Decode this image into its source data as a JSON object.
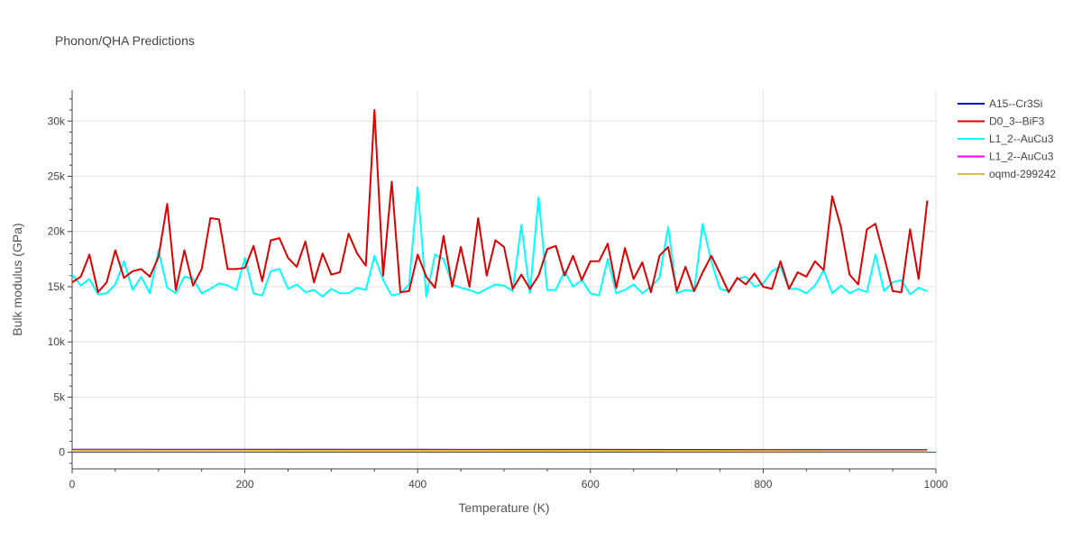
{
  "chart_data": {
    "type": "line",
    "title": "Phonon/QHA Predictions",
    "xlabel": "Temperature (K)",
    "ylabel": "Bulk modulus (GPa)",
    "xlim": [
      0,
      1000
    ],
    "ylim": [
      -1500,
      32800
    ],
    "xticks": [
      0,
      200,
      400,
      600,
      800,
      1000
    ],
    "xtick_labels": [
      "0",
      "200",
      "400",
      "600",
      "800",
      "1000"
    ],
    "yticks": [
      0,
      5000,
      10000,
      15000,
      20000,
      25000,
      30000
    ],
    "ytick_labels": [
      "0",
      "5k",
      "10k",
      "15k",
      "20k",
      "25k",
      "30k"
    ],
    "grid": true,
    "legend_position": "top-right",
    "series": [
      {
        "name": "A15--Cr3Si",
        "color": "#0000dd",
        "x": [
          0,
          200,
          400,
          600,
          800,
          990
        ],
        "y": [
          240,
          238,
          232,
          222,
          208,
          190
        ]
      },
      {
        "name": "D0_3--BiF3",
        "color": "#dd0000",
        "x": [
          0,
          10,
          20,
          30,
          40,
          50,
          60,
          70,
          80,
          90,
          100,
          110,
          120,
          130,
          140,
          150,
          160,
          170,
          180,
          190,
          200,
          210,
          220,
          230,
          240,
          250,
          260,
          270,
          280,
          290,
          300,
          310,
          320,
          330,
          340,
          350,
          360,
          370,
          380,
          390,
          400,
          410,
          420,
          430,
          440,
          450,
          460,
          470,
          480,
          490,
          500,
          510,
          520,
          530,
          540,
          550,
          560,
          570,
          580,
          590,
          600,
          610,
          620,
          630,
          640,
          650,
          660,
          670,
          680,
          690,
          700,
          710,
          720,
          730,
          740,
          750,
          760,
          770,
          780,
          790,
          800,
          810,
          820,
          830,
          840,
          850,
          860,
          870,
          880,
          890,
          900,
          910,
          920,
          930,
          940,
          950,
          960,
          970,
          980,
          990
        ],
        "y": [
          15400,
          15900,
          17900,
          14500,
          15400,
          18300,
          15800,
          16400,
          16600,
          15900,
          17700,
          22500,
          14700,
          18300,
          15100,
          16600,
          21200,
          21100,
          16600,
          16600,
          16700,
          18700,
          15500,
          19200,
          19400,
          17600,
          16800,
          19100,
          15400,
          18000,
          16100,
          16300,
          19800,
          18000,
          16900,
          31000,
          16000,
          24500,
          14500,
          14600,
          17900,
          15900,
          14900,
          19600,
          15000,
          18600,
          15000,
          21200,
          16000,
          19200,
          18600,
          14800,
          16100,
          14800,
          16000,
          18400,
          18700,
          16000,
          17800,
          15600,
          17300,
          17300,
          18900,
          14900,
          18500,
          15700,
          17200,
          14500,
          17800,
          18600,
          14600,
          16800,
          14600,
          16300,
          17800,
          16200,
          14500,
          15800,
          15200,
          16200,
          15000,
          14800,
          17300,
          14800,
          16300,
          15900,
          17300,
          16500,
          23200,
          20400,
          16100,
          15200,
          20200,
          20700,
          17700,
          14600,
          14500,
          20200,
          15700,
          22800
        ]
      },
      {
        "name": "L1_2--AuCu3",
        "color": "#00ffff",
        "x": [
          0,
          10,
          20,
          30,
          40,
          50,
          60,
          70,
          80,
          90,
          100,
          110,
          120,
          130,
          140,
          150,
          160,
          170,
          180,
          190,
          200,
          210,
          220,
          230,
          240,
          250,
          260,
          270,
          280,
          290,
          300,
          310,
          320,
          330,
          340,
          350,
          360,
          370,
          380,
          390,
          400,
          410,
          420,
          430,
          440,
          450,
          460,
          470,
          480,
          490,
          500,
          510,
          520,
          530,
          540,
          550,
          560,
          570,
          580,
          590,
          600,
          610,
          620,
          630,
          640,
          650,
          660,
          670,
          680,
          690,
          700,
          710,
          720,
          730,
          740,
          750,
          760,
          770,
          780,
          790,
          800,
          810,
          820,
          830,
          840,
          850,
          860,
          870,
          880,
          890,
          900,
          910,
          920,
          930,
          940,
          950,
          960,
          970,
          980,
          990
        ],
        "y": [
          16100,
          15100,
          15700,
          14300,
          14400,
          15200,
          17300,
          14700,
          15900,
          14400,
          18300,
          14900,
          14400,
          15900,
          15700,
          14400,
          14800,
          15300,
          15100,
          14700,
          17600,
          14400,
          14200,
          16400,
          16600,
          14800,
          15200,
          14500,
          14700,
          14100,
          14800,
          14400,
          14400,
          14900,
          14700,
          17800,
          15600,
          14200,
          14400,
          15200,
          24000,
          14100,
          17900,
          17500,
          15200,
          14900,
          14700,
          14400,
          14800,
          15200,
          15100,
          14600,
          20600,
          14400,
          23100,
          14700,
          14700,
          16400,
          15000,
          15600,
          14400,
          14200,
          17500,
          14400,
          14700,
          15200,
          14400,
          15000,
          15800,
          20400,
          14400,
          14700,
          14600,
          20700,
          17300,
          14800,
          14600,
          15700,
          15900,
          15000,
          15300,
          16400,
          16800,
          14800,
          14800,
          14400,
          15100,
          16500,
          14400,
          15100,
          14400,
          14800,
          14500,
          17900,
          14600,
          15400,
          15600,
          14300,
          14900,
          14600
        ]
      },
      {
        "name": "L1_2--AuCu3",
        "color": "#ff00ff",
        "x": [
          0,
          200,
          400,
          600,
          800,
          990
        ],
        "y": [
          180,
          178,
          172,
          163,
          150,
          132
        ]
      },
      {
        "name": "oqmd-299242",
        "color": "#ddbb33",
        "x": [
          0,
          200,
          400,
          600,
          800,
          990
        ],
        "y": [
          150,
          148,
          143,
          134,
          120,
          100
        ]
      }
    ]
  }
}
